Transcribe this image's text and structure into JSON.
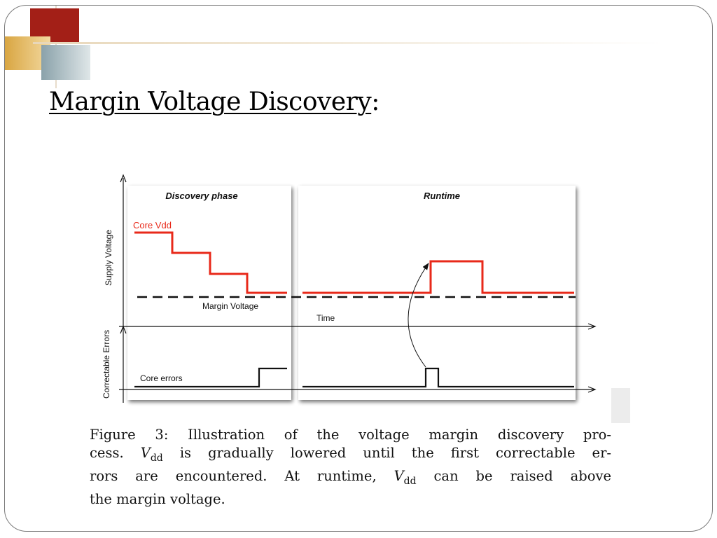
{
  "slide": {
    "title": "Margin Voltage Discovery",
    "title_colon": ":"
  },
  "figure": {
    "panel_left_title": "Discovery phase",
    "panel_right_title": "Runtime",
    "y_label_top": "Supply Voltage",
    "y_label_bottom": "Correctable Errors",
    "core_vdd_label": "Core Vdd",
    "margin_voltage_label": "Margin Voltage",
    "time_label": "Time",
    "core_errors_label": "Core errors",
    "colors": {
      "core_vdd": "#e8291a",
      "lines": "#111111",
      "panel_shadow": "#9a9a9a"
    }
  },
  "caption": {
    "line1": "Figure 3: Illustration of the voltage margin discovery pro-",
    "line2_a": "cess.",
    "vdd_v": "V",
    "vdd_sub": "dd",
    "line2_b": "is gradually lowered until the first correctable er-",
    "line3_a": "rors are encountered.  At runtime,",
    "line3_b": "can be raised above",
    "line4": "the margin voltage."
  }
}
